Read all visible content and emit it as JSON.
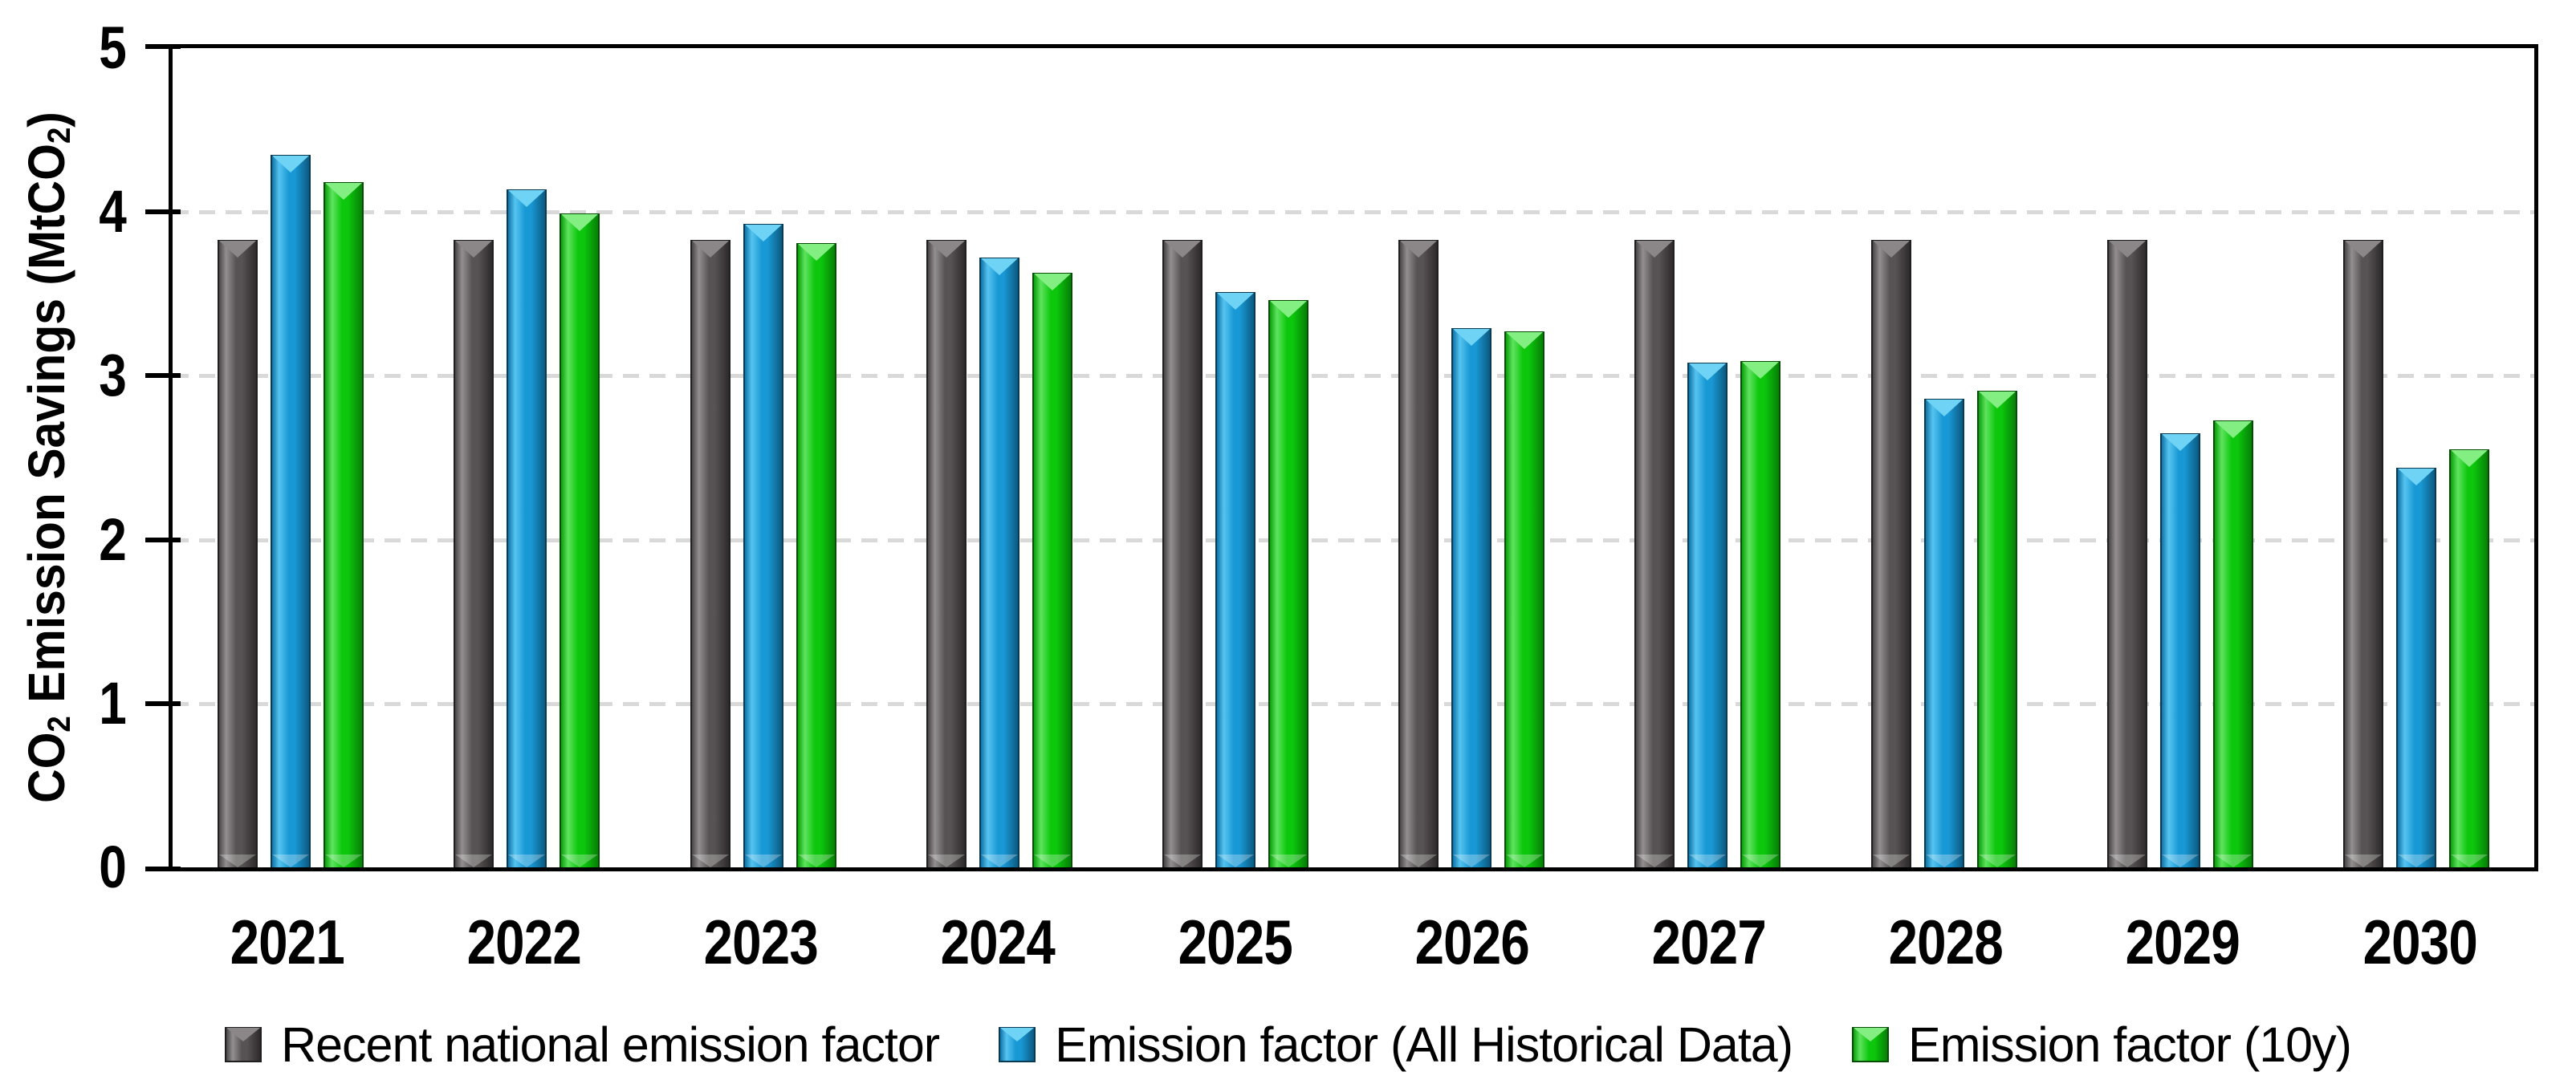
{
  "chart_data": {
    "type": "bar",
    "title": "",
    "xlabel": "",
    "ylabel": "CO2 Emission Savings (MtCO2)",
    "ylabel_rich": [
      {
        "t": "CO"
      },
      {
        "t": "2",
        "sub": true
      },
      {
        "t": " Emission Savings (MtCO"
      },
      {
        "t": "2",
        "sub": true
      },
      {
        "t": ")"
      }
    ],
    "categories": [
      "2021",
      "2022",
      "2023",
      "2024",
      "2025",
      "2026",
      "2027",
      "2028",
      "2029",
      "2030"
    ],
    "series": [
      {
        "key": "recent-national-emission-factor",
        "name": "Recent national emission factor",
        "color": "#575253",
        "values": [
          3.83,
          3.83,
          3.83,
          3.83,
          3.83,
          3.83,
          3.83,
          3.83,
          3.83,
          3.83
        ],
        "fill": {
          "edge": "#4a4647",
          "light": "#938f90",
          "main": "#575253",
          "dark": "#2e2a2b",
          "notch": "#8b8788",
          "line": "#1f1f1f"
        }
      },
      {
        "key": "emission-factor-all-historical-data",
        "name": "Emission factor (All Historical Data)",
        "color": "#1898d4",
        "values": [
          4.35,
          4.14,
          3.93,
          3.72,
          3.51,
          3.29,
          3.08,
          2.86,
          2.65,
          2.44
        ],
        "fill": {
          "edge": "#0f74a8",
          "light": "#56c4f0",
          "main": "#1898d4",
          "dark": "#0d5a81",
          "notch": "#6fd3f6",
          "line": "#093a54"
        }
      },
      {
        "key": "emission-factor-10y",
        "name": "Emission factor (10y)",
        "color": "#0cc70c",
        "values": [
          4.18,
          3.99,
          3.81,
          3.63,
          3.46,
          3.27,
          3.09,
          2.91,
          2.73,
          2.55
        ],
        "fill": {
          "edge": "#0aa00a",
          "light": "#5fe35f",
          "main": "#0cc70c",
          "dark": "#077f07",
          "notch": "#83ef83",
          "line": "#054d05"
        }
      }
    ],
    "ylim": [
      0,
      5
    ],
    "yticks": [
      0,
      1,
      2,
      3,
      4,
      5
    ],
    "gridlines_at": [
      1,
      2,
      3,
      4
    ],
    "grid_style": "dashed",
    "grid_color": "#d9d9d9",
    "axis_color": "#000000",
    "background": "#ffffff",
    "legend_position": "bottom"
  }
}
